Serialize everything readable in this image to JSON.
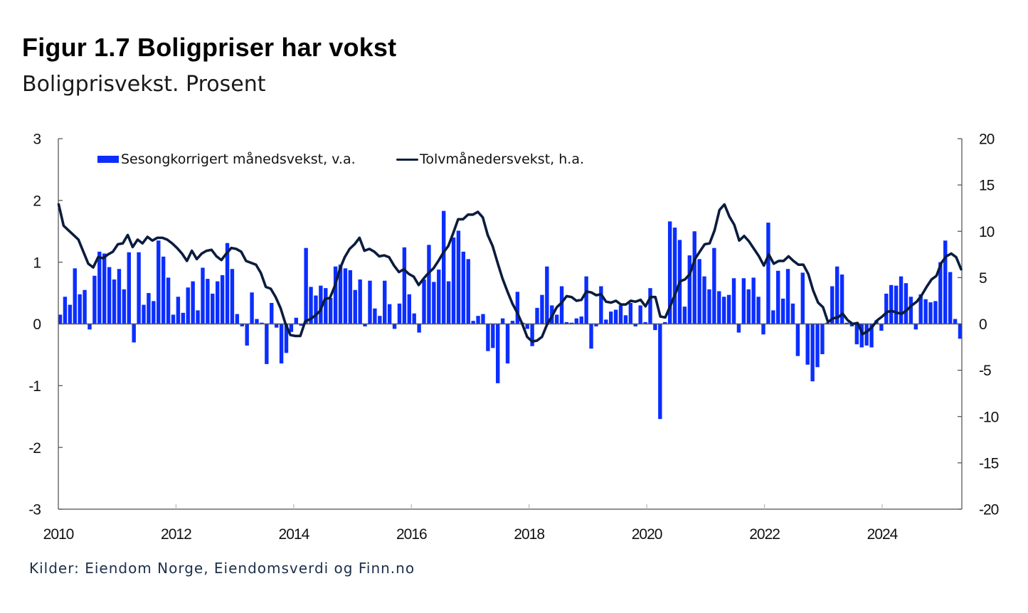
{
  "title": "Figur 1.7 Boligpriser har vokst",
  "subtitle": "Boligprisvekst. Prosent",
  "source": "Kilder: Eiendom Norge, Eiendomsverdi og Finn.no",
  "colors": {
    "bar": "#0b2eff",
    "line": "#0b1c3d",
    "axis": "#4d4d4d",
    "x_tick": "#b8b8b8",
    "source_text": "#1c2e4a"
  },
  "chart_data": {
    "type": "bar",
    "title": "Figur 1.7 Boligpriser har vokst",
    "subtitle": "Boligprisvekst. Prosent",
    "xlabel": "",
    "ylabel": "",
    "y2label": "",
    "frequency": "monthly",
    "x_start": "2010-01",
    "x_end": "2025-04",
    "xticks": [
      "2010",
      "2012",
      "2014",
      "2016",
      "2018",
      "2020",
      "2022",
      "2024"
    ],
    "ylim": [
      -3,
      3
    ],
    "yticks": [
      -3,
      -2,
      -1,
      0,
      1,
      2,
      3
    ],
    "y2lim": [
      -20,
      20
    ],
    "y2ticks": [
      -20,
      -15,
      -10,
      -5,
      0,
      5,
      10,
      15,
      20
    ],
    "grid": false,
    "legend_position": "top-left",
    "series": [
      {
        "name": "Sesongkorrigert månedsvekst, v.a.",
        "type": "bar",
        "axis": "left",
        "values": [
          0.15,
          0.44,
          0.31,
          0.9,
          0.48,
          0.55,
          -0.09,
          0.78,
          1.17,
          1.14,
          0.92,
          0.72,
          0.89,
          0.56,
          1.16,
          -0.3,
          1.16,
          0.31,
          0.5,
          0.37,
          1.35,
          1.09,
          0.75,
          0.15,
          0.44,
          0.18,
          0.59,
          0.69,
          0.22,
          0.91,
          0.73,
          0.49,
          0.69,
          0.79,
          1.31,
          0.89,
          0.16,
          -0.04,
          -0.35,
          0.51,
          0.08,
          0.02,
          -0.65,
          0.34,
          -0.06,
          -0.64,
          -0.47,
          -0.13,
          0.1,
          -0.03,
          1.23,
          0.6,
          0.46,
          0.62,
          0.58,
          0.42,
          0.93,
          0.96,
          0.9,
          0.87,
          0.55,
          0.72,
          -0.04,
          0.7,
          0.25,
          0.13,
          0.7,
          0.32,
          -0.08,
          0.33,
          1.24,
          0.48,
          0.17,
          -0.14,
          0.72,
          1.28,
          0.68,
          0.88,
          1.83,
          0.69,
          1.4,
          1.51,
          1.17,
          1.05,
          0.05,
          0.13,
          0.16,
          -0.44,
          -0.39,
          -0.96,
          0.09,
          -0.64,
          0.05,
          0.52,
          0.02,
          -0.08,
          -0.36,
          0.26,
          0.47,
          0.93,
          0.3,
          0.15,
          0.61,
          0.03,
          0.02,
          0.09,
          0.12,
          0.77,
          -0.4,
          -0.04,
          0.61,
          0.07,
          0.2,
          0.23,
          0.3,
          0.14,
          0.34,
          -0.04,
          0.3,
          0.03,
          0.58,
          -0.1,
          -1.54,
          0.03,
          1.66,
          1.56,
          1.36,
          0.28,
          1.11,
          1.5,
          1.05,
          0.77,
          0.56,
          1.23,
          0.53,
          0.44,
          0.47,
          0.74,
          -0.14,
          0.74,
          0.56,
          0.75,
          0.44,
          -0.17,
          1.64,
          0.22,
          0.86,
          0.41,
          0.89,
          0.33,
          -0.52,
          0.83,
          -0.66,
          -0.93,
          -0.7,
          -0.49,
          0.02,
          0.61,
          0.93,
          0.8,
          0.02,
          -0.04,
          -0.33,
          -0.38,
          -0.35,
          -0.38,
          0.06,
          -0.11,
          0.49,
          0.63,
          0.62,
          0.77,
          0.66,
          0.44,
          -0.09,
          0.48,
          0.4,
          0.35,
          0.37,
          1.0,
          1.35,
          0.84,
          0.08,
          -0.24
        ]
      },
      {
        "name": "Tolvmånedersvekst, h.a.",
        "type": "line",
        "axis": "right",
        "values": [
          12.9,
          10.6,
          10.1,
          9.6,
          9.1,
          7.8,
          6.5,
          6.1,
          7.2,
          7.1,
          7.5,
          7.8,
          8.6,
          8.7,
          9.6,
          8.3,
          9.1,
          8.7,
          9.4,
          9.0,
          9.3,
          9.3,
          9.1,
          8.7,
          8.2,
          7.6,
          6.8,
          7.9,
          7.0,
          7.6,
          7.9,
          8.0,
          7.3,
          6.9,
          7.6,
          8.2,
          8.1,
          7.8,
          6.8,
          6.6,
          6.4,
          5.5,
          4.0,
          3.8,
          2.9,
          1.7,
          0.0,
          -1.2,
          -1.3,
          -1.3,
          0.3,
          0.5,
          0.9,
          1.4,
          2.7,
          2.8,
          4.1,
          5.9,
          7.2,
          8.1,
          8.6,
          9.3,
          7.9,
          8.1,
          7.8,
          7.3,
          7.4,
          7.2,
          6.3,
          5.6,
          5.9,
          5.4,
          5.1,
          4.2,
          4.9,
          5.5,
          6.0,
          6.8,
          7.7,
          8.4,
          9.8,
          11.3,
          11.3,
          11.8,
          11.8,
          12.1,
          11.5,
          9.6,
          8.4,
          6.6,
          4.9,
          3.5,
          2.2,
          1.2,
          0.0,
          -1.4,
          -1.9,
          -1.8,
          -1.4,
          -0.1,
          0.8,
          1.8,
          2.3,
          3.0,
          2.9,
          2.5,
          2.6,
          3.5,
          3.4,
          3.1,
          3.2,
          2.4,
          2.3,
          2.5,
          2.1,
          2.1,
          2.5,
          2.4,
          2.6,
          1.9,
          2.9,
          2.9,
          0.8,
          0.7,
          1.9,
          3.2,
          4.6,
          4.8,
          5.4,
          7.0,
          7.8,
          8.6,
          8.7,
          10.1,
          12.3,
          12.9,
          11.6,
          10.7,
          9.0,
          9.5,
          8.9,
          8.1,
          7.3,
          6.3,
          7.5,
          6.5,
          6.8,
          6.8,
          7.3,
          6.8,
          6.4,
          6.4,
          5.4,
          3.6,
          2.3,
          1.8,
          0.2,
          0.6,
          0.7,
          1.1,
          0.4,
          0.0,
          0.1,
          -1.1,
          -0.8,
          -0.3,
          0.4,
          0.8,
          1.3,
          1.4,
          1.2,
          1.1,
          1.5,
          2.0,
          2.4,
          3.1,
          4.0,
          4.8,
          5.2,
          6.6,
          7.3,
          7.6,
          7.2,
          5.9
        ]
      }
    ]
  }
}
